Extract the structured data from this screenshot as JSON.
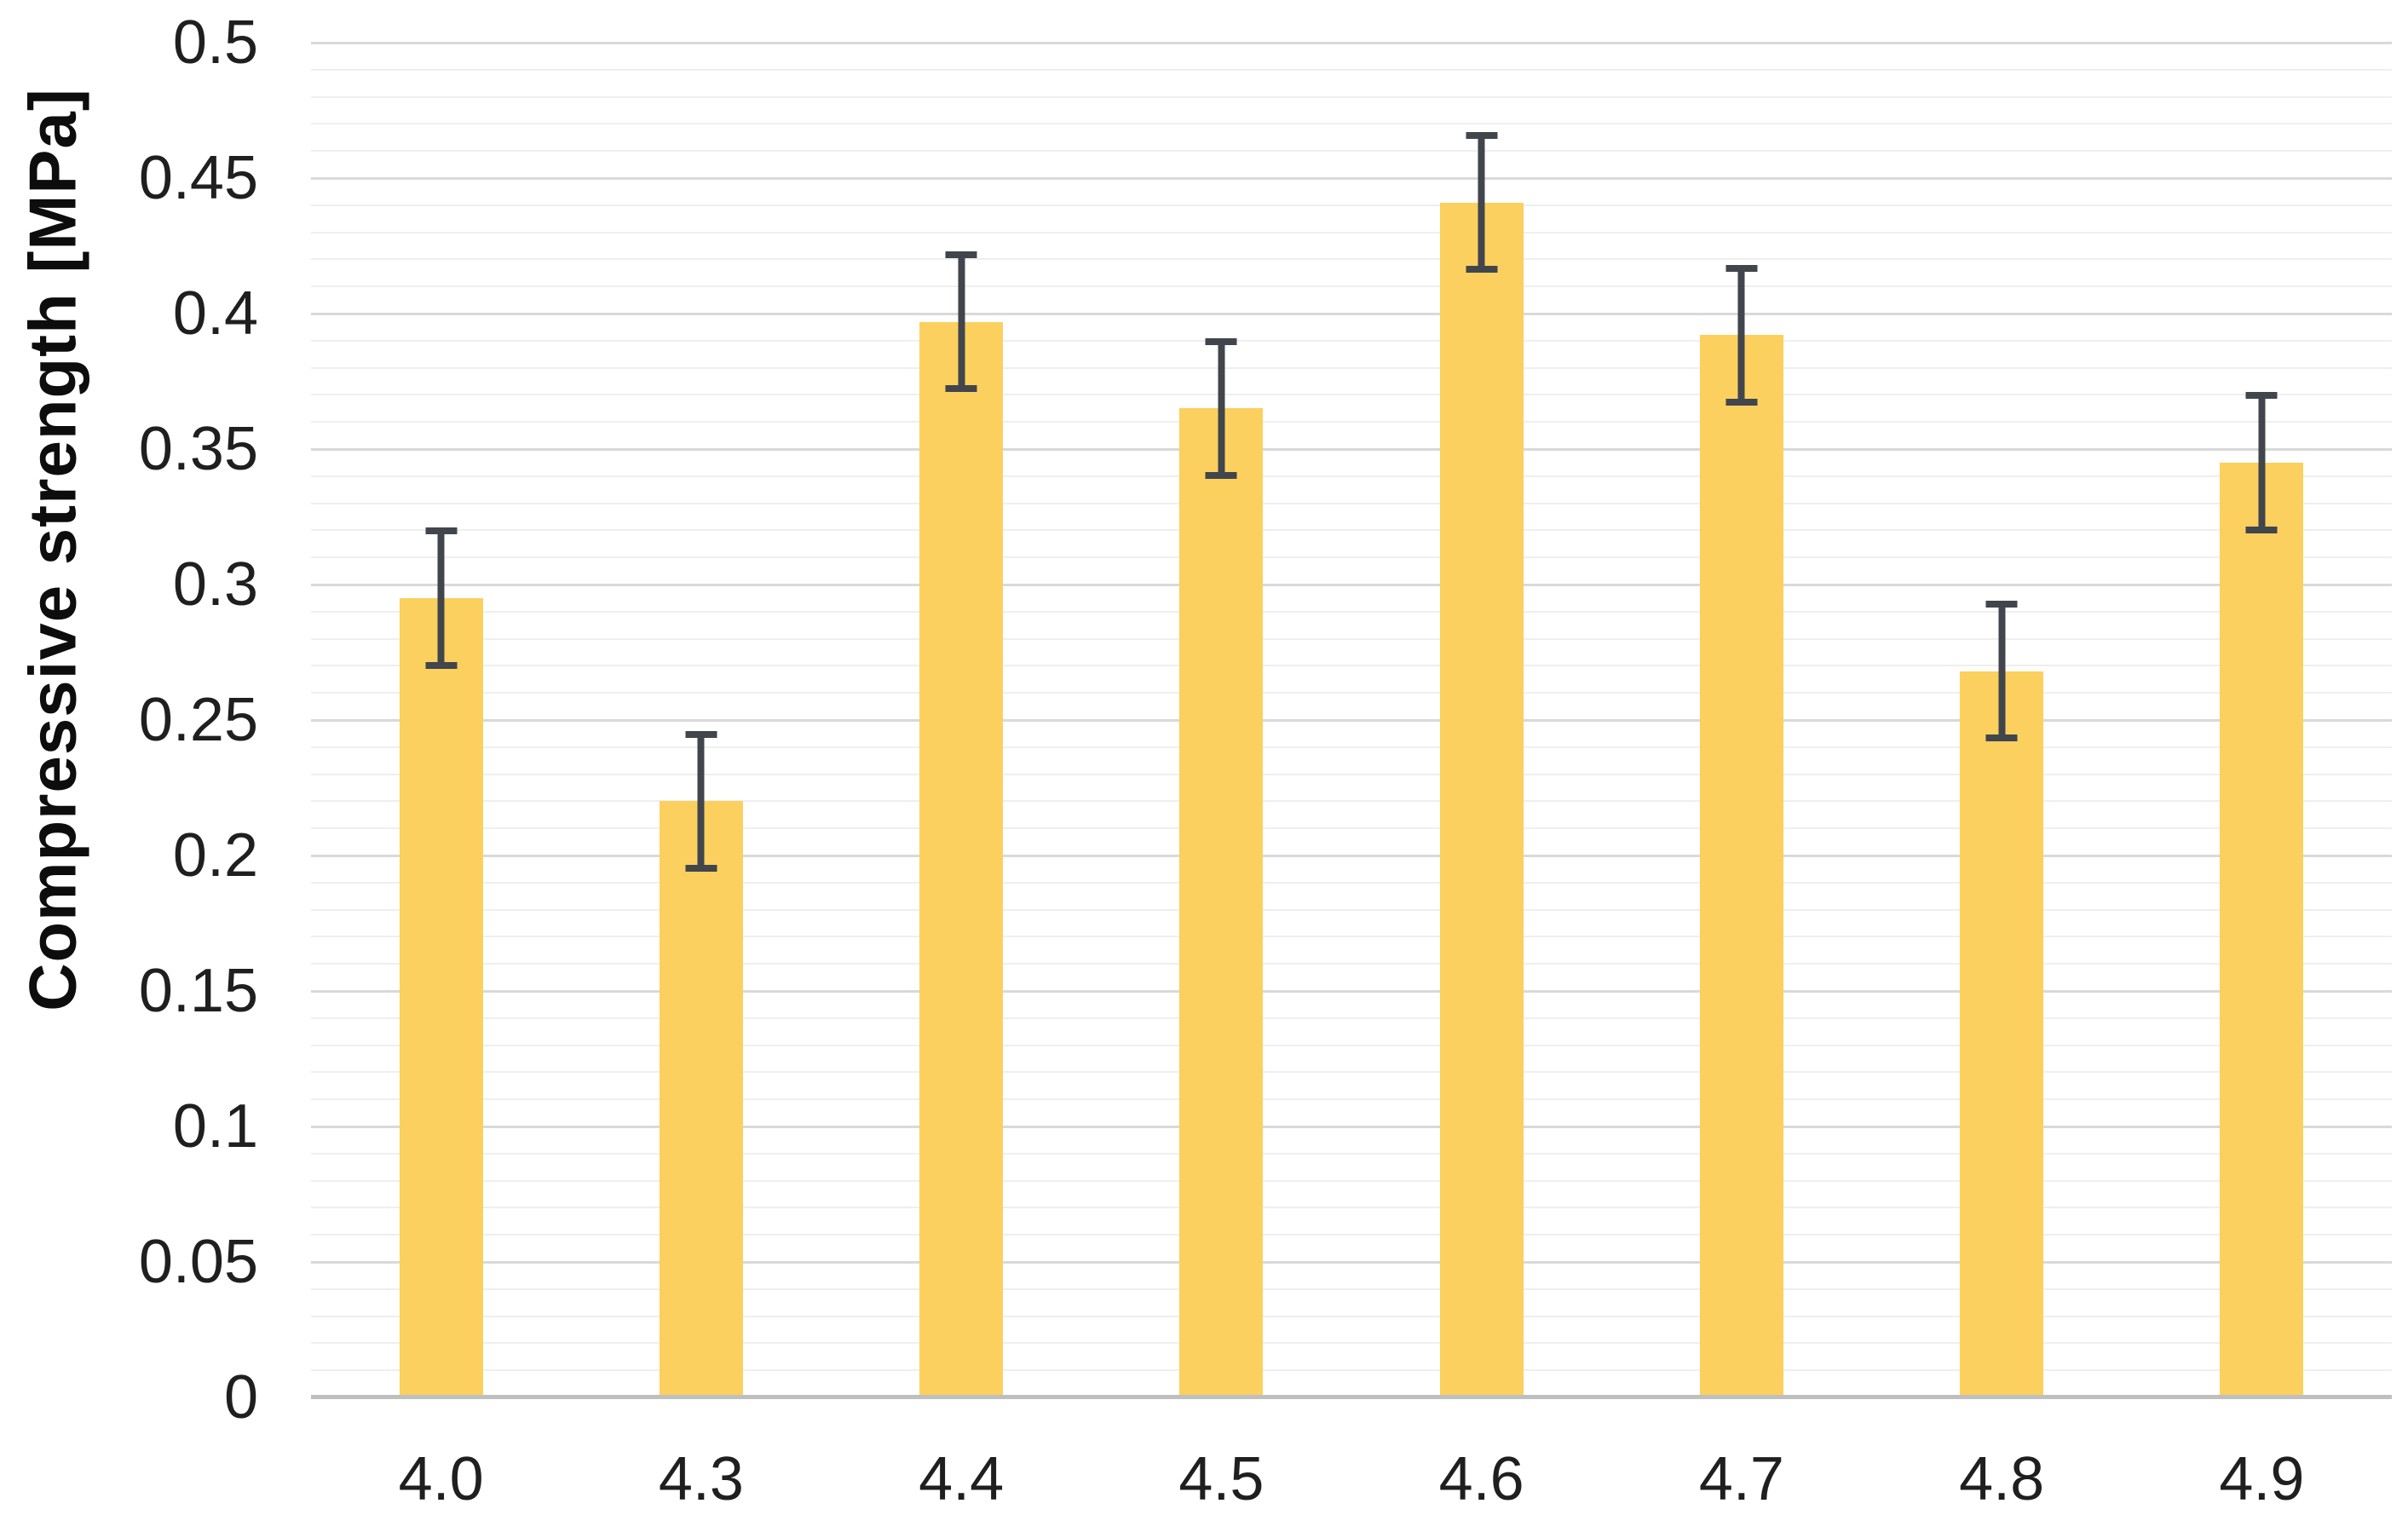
{
  "chart_data": {
    "type": "bar",
    "title": "",
    "xlabel": "",
    "ylabel": "Compressive strength [MPa]",
    "categories": [
      "4.0",
      "4.3",
      "4.4",
      "4.5",
      "4.6",
      "4.7",
      "4.8",
      "4.9"
    ],
    "series": [
      {
        "name": "Compressive strength",
        "values": [
          0.295,
          0.22,
          0.397,
          0.365,
          0.441,
          0.392,
          0.268,
          0.345
        ],
        "errors": [
          0.026,
          0.026,
          0.026,
          0.026,
          0.026,
          0.026,
          0.026,
          0.026
        ]
      }
    ],
    "ylim": [
      0,
      0.5
    ],
    "y_major_step": 0.05,
    "y_minor_step": 0.01,
    "y_tick_labels": [
      "0",
      "0.05",
      "0.1",
      "0.15",
      "0.2",
      "0.25",
      "0.3",
      "0.35",
      "0.4",
      "0.45",
      "0.5"
    ],
    "grid": "horizontal major+minor",
    "legend_position": "none",
    "colors": {
      "bar_fill": "#fcd05f",
      "error_bar": "#41454c",
      "grid_major": "#d9d9d9",
      "grid_minor": "#efefef",
      "axis_line": "#bfbfbf",
      "tick_text": "#1f1f1f",
      "background": "#ffffff"
    }
  }
}
